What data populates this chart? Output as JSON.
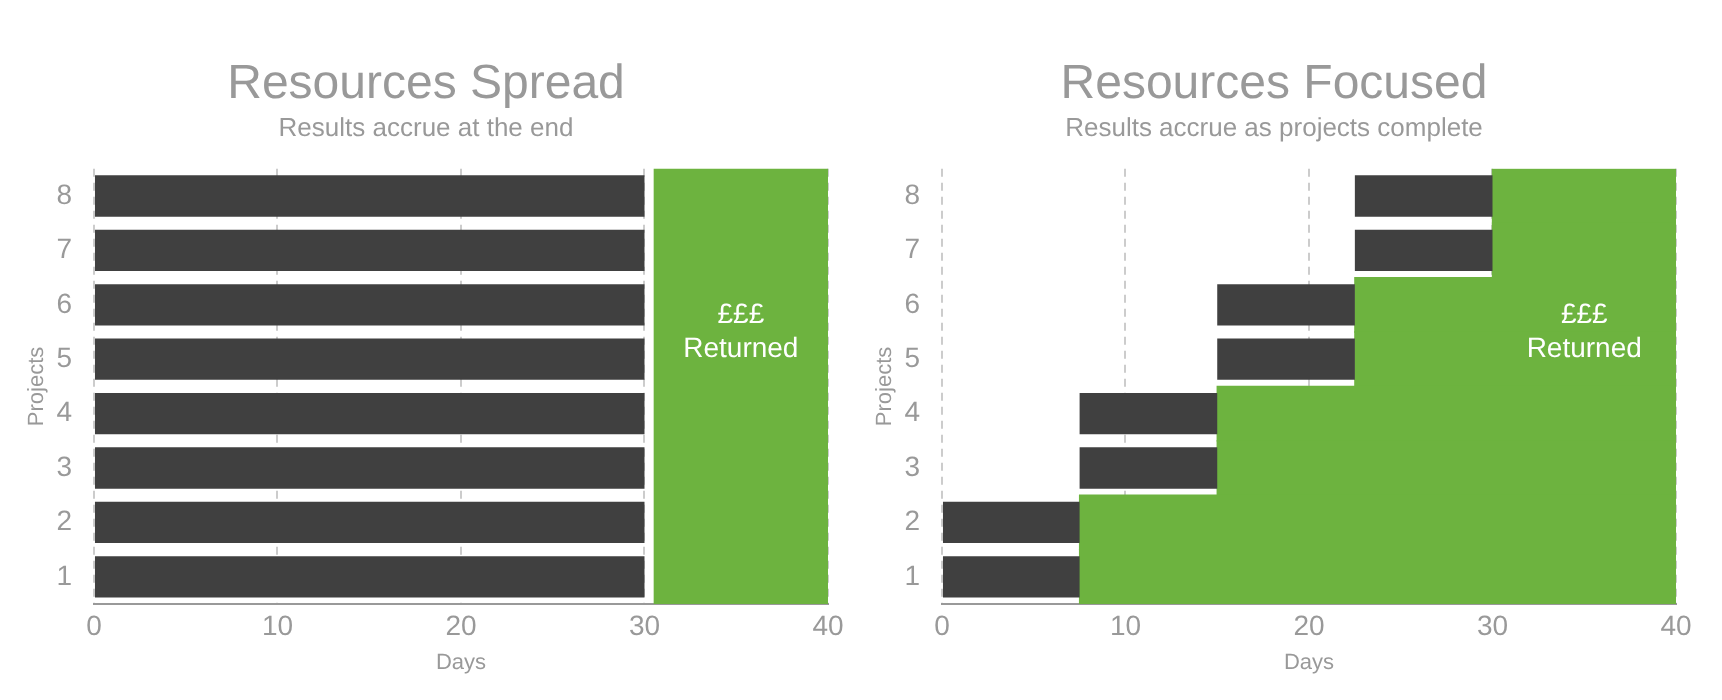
{
  "chart_data": [
    {
      "type": "bar",
      "orientation": "horizontal",
      "title": "Resources Spread",
      "subtitle": "Results accrue at the end",
      "xlabel": "Days",
      "ylabel": "Projects",
      "categories": [
        "8",
        "7",
        "6",
        "5",
        "4",
        "3",
        "2",
        "1"
      ],
      "xlim": [
        0,
        40
      ],
      "xticks": [
        0,
        10,
        20,
        30,
        40
      ],
      "grid": "x",
      "series": [
        {
          "color": "#404040",
          "base": [
            0,
            0,
            0,
            0,
            0,
            0,
            0,
            0
          ],
          "values": [
            30,
            30,
            30,
            30,
            30,
            30,
            30,
            30
          ]
        }
      ],
      "bands": [
        {
          "axis": "x",
          "from": 30.5,
          "to": 40,
          "label": "£££ Returned",
          "color": "#6db33f"
        }
      ]
    },
    {
      "type": "bar",
      "orientation": "horizontal",
      "title": "Resources Focused",
      "subtitle": "Results accrue as projects complete",
      "xlabel": "Days",
      "ylabel": "Projects",
      "categories": [
        "8",
        "7",
        "6",
        "5",
        "4",
        "3",
        "2",
        "1"
      ],
      "xlim": [
        0,
        40
      ],
      "xticks": [
        0,
        10,
        20,
        30,
        40
      ],
      "grid": "x",
      "series": [
        {
          "color": "#404040",
          "base": [
            22.5,
            22.5,
            15,
            15,
            7.5,
            7.5,
            0,
            0
          ],
          "values": [
            7.5,
            7.5,
            7.5,
            7.5,
            7.5,
            7.5,
            7.5,
            7.5
          ]
        },
        {
          "name": "£££ Returned",
          "color": "#6db33f",
          "base": [
            30,
            30,
            22.5,
            22.5,
            15,
            15,
            7.5,
            7.5
          ],
          "values": [
            10,
            10,
            17.5,
            17.5,
            25,
            25,
            32.5,
            32.5
          ]
        }
      ]
    }
  ]
}
